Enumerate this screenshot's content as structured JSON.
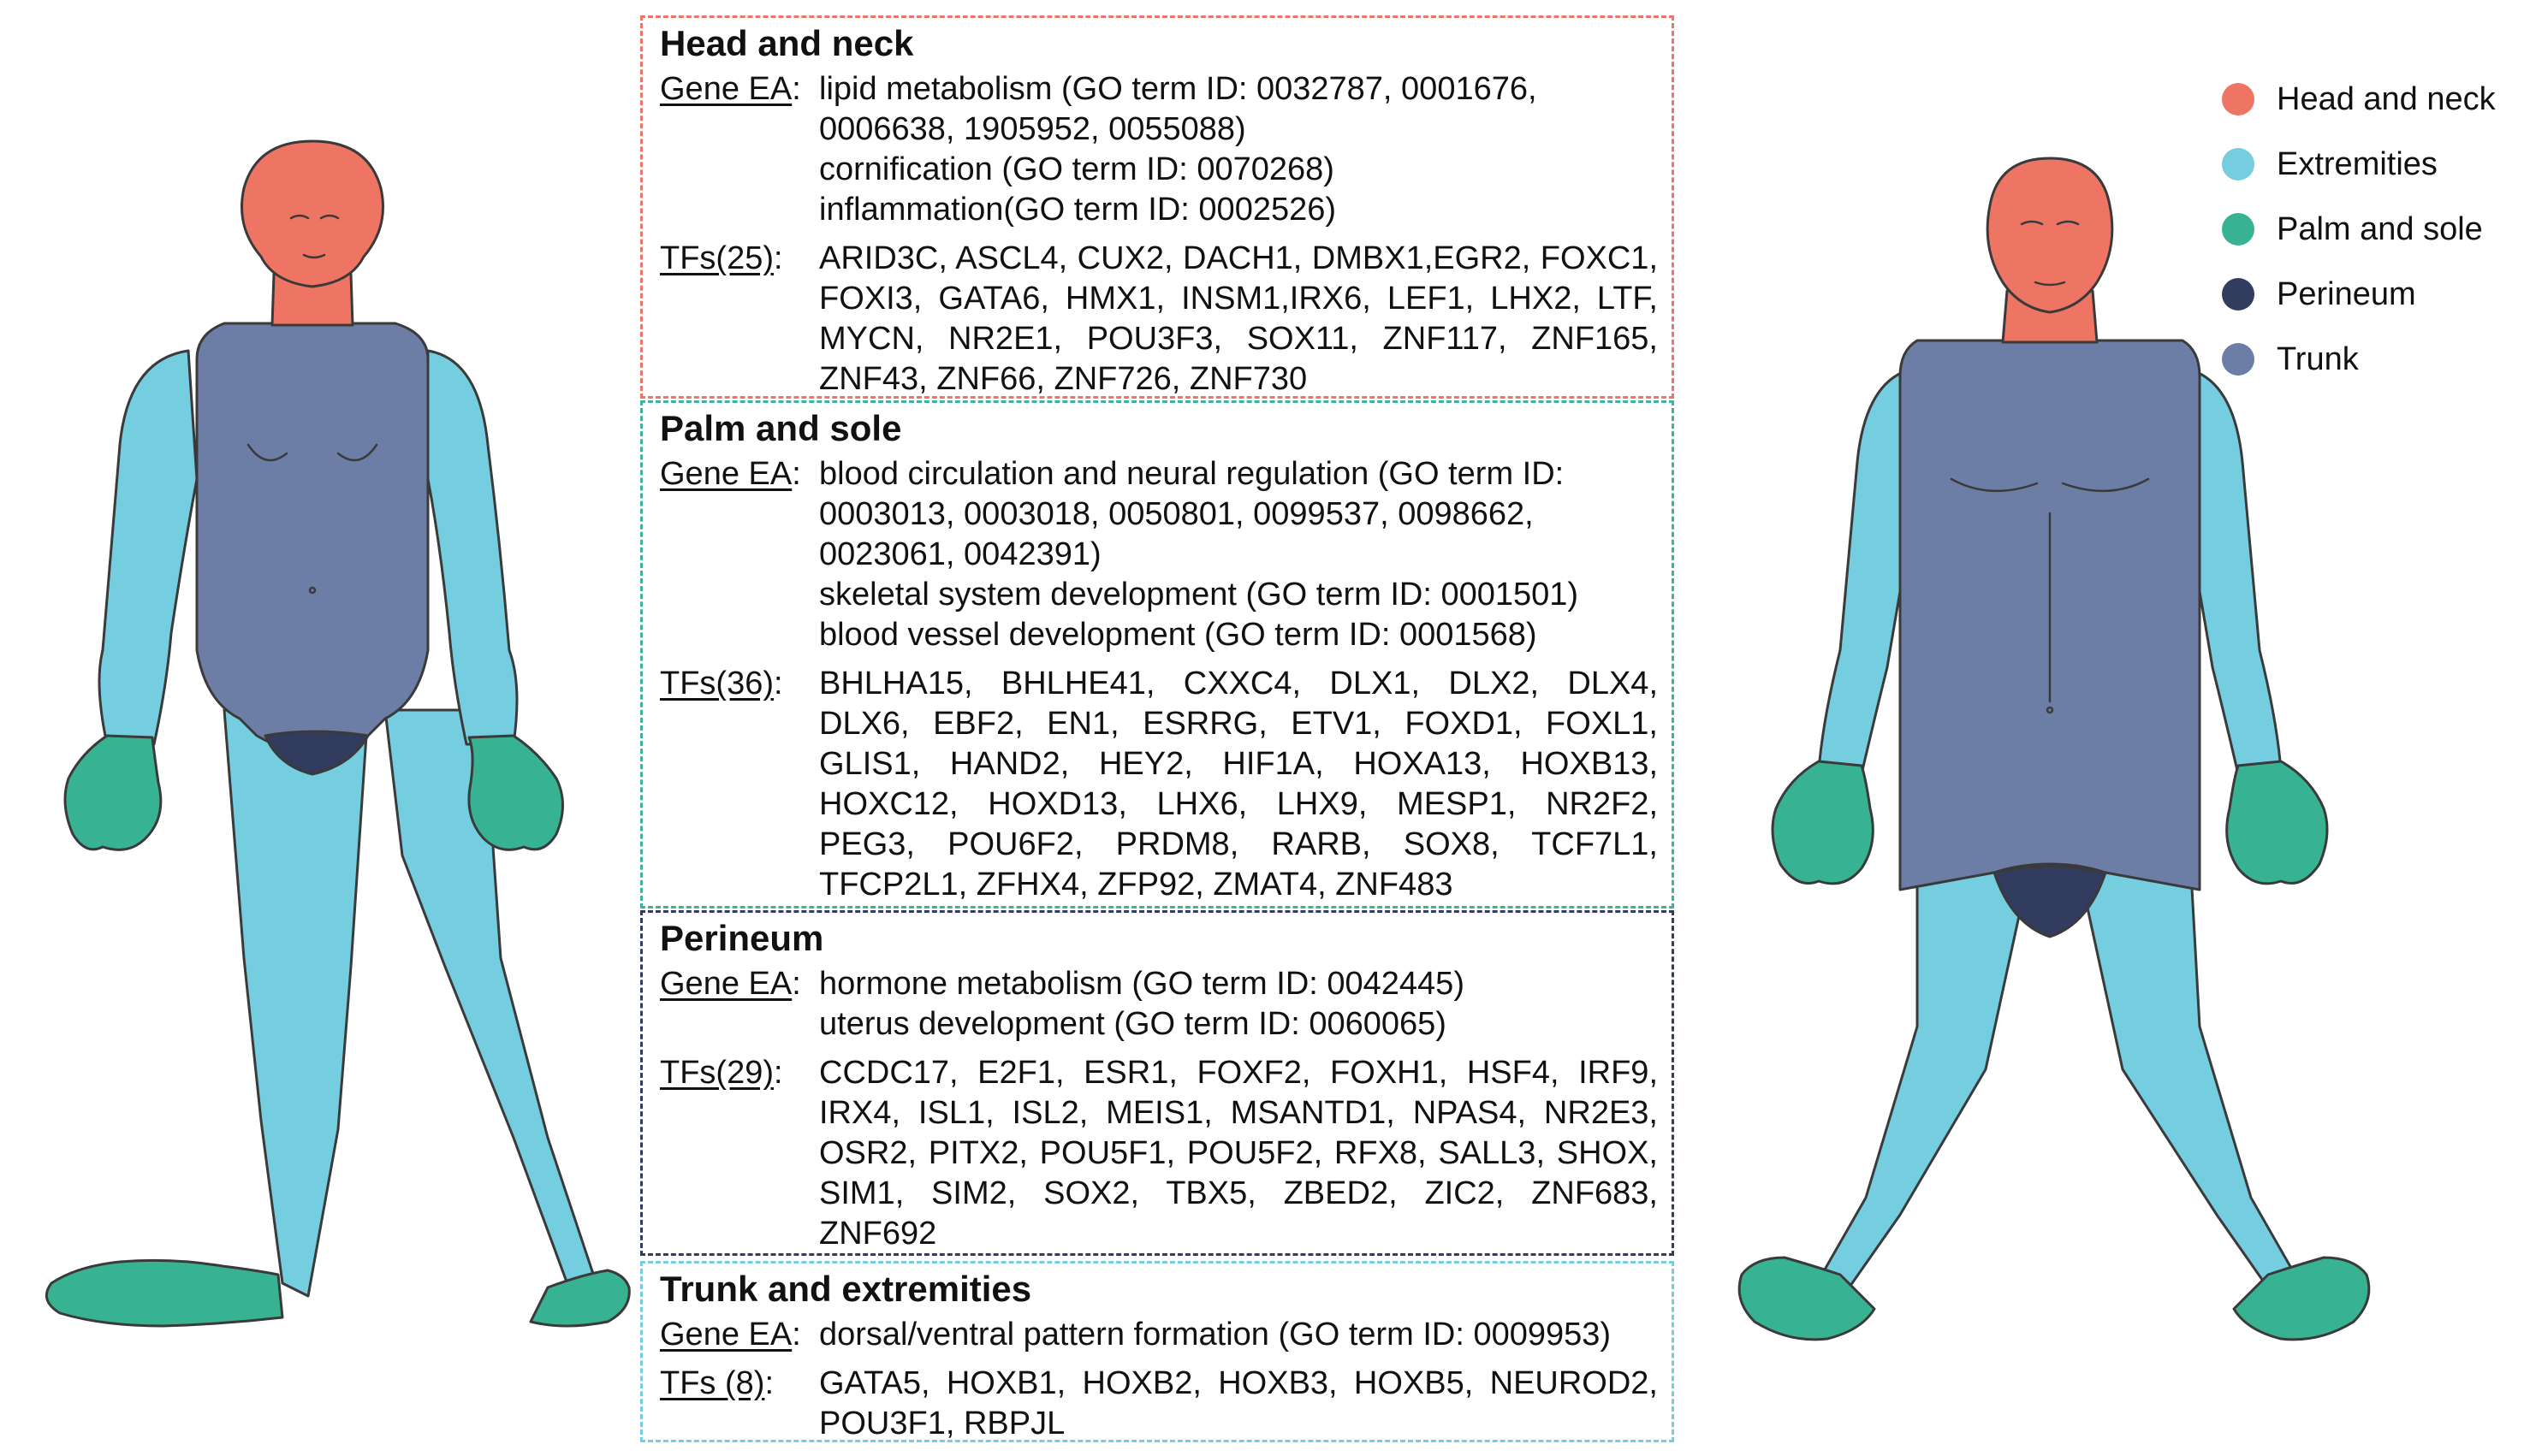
{
  "legend": {
    "items": [
      {
        "label": "Head and neck",
        "color": "#ee7563"
      },
      {
        "label": "Extremities",
        "color": "#75cde0"
      },
      {
        "label": "Palm and sole",
        "color": "#37b394"
      },
      {
        "label": "Perineum",
        "color": "#323c5e"
      },
      {
        "label": "Trunk",
        "color": "#6c7ea6"
      }
    ]
  },
  "panels": [
    {
      "id": "head-neck",
      "title": "Head and neck",
      "border_color": "#e8766a",
      "gene_ea_label": "Gene EA",
      "gene_ea_lines": [
        "lipid metabolism (GO term ID: 0032787, 0001676,",
        "0006638, 1905952, 0055088)",
        "cornification (GO term ID: 0070268)",
        "inflammation(GO term ID: 0002526)"
      ],
      "tfs_label": "TFs(25)",
      "tfs_text": "ARID3C, ASCL4, CUX2, DACH1, DMBX1,EGR2, FOXC1, FOXI3, GATA6, HMX1, INSM1,IRX6, LEF1, LHX2, LTF, MYCN, NR2E1, POU3F3, SOX11, ZNF117, ZNF165, ZNF43, ZNF66, ZNF726, ZNF730"
    },
    {
      "id": "palm-sole",
      "title": "Palm and sole",
      "border_color": "#3fb39a",
      "gene_ea_label": "Gene EA",
      "gene_ea_lines": [
        "blood circulation and neural regulation (GO term ID:",
        "0003013, 0003018, 0050801, 0099537, 0098662,",
        "0023061, 0042391)",
        "skeletal system development (GO term ID: 0001501)",
        "blood vessel development (GO term ID: 0001568)"
      ],
      "tfs_label": "TFs(36)",
      "tfs_text": "BHLHA15, BHLHE41, CXXC4, DLX1, DLX2, DLX4, DLX6, EBF2, EN1, ESRRG, ETV1, FOXD1, FOXL1, GLIS1, HAND2, HEY2, HIF1A, HOXA13, HOXB13, HOXC12, HOXD13, LHX6, LHX9, MESP1, NR2F2, PEG3, POU6F2, PRDM8, RARB, SOX8, TCF7L1, TFCP2L1, ZFHX4, ZFP92, ZMAT4, ZNF483"
    },
    {
      "id": "perineum",
      "title": "Perineum",
      "border_color": "#323c5e",
      "gene_ea_label": "Gene EA",
      "gene_ea_lines": [
        "hormone metabolism (GO term ID: 0042445)",
        "uterus development (GO term ID: 0060065)"
      ],
      "tfs_label": "TFs(29)",
      "tfs_text": "CCDC17, E2F1, ESR1, FOXF2, FOXH1, HSF4, IRF9, IRX4, ISL1, ISL2, MEIS1, MSANTD1, NPAS4, NR2E3, OSR2, PITX2, POU5F1, POU5F2, RFX8, SALL3, SHOX, SIM1, SIM2, SOX2, TBX5, ZBED2, ZIC2, ZNF683, ZNF692"
    },
    {
      "id": "trunk-extremities",
      "title": "Trunk and extremities",
      "border_color": "#75cde0",
      "gene_ea_label": "Gene EA",
      "gene_ea_lines": [
        "dorsal/ventral pattern formation (GO term ID: 0009953)"
      ],
      "tfs_label": "TFs (8)",
      "tfs_text": "GATA5, HOXB1, HOXB2, HOXB3, HOXB5, NEUROD2, POU3F1, RBPJL"
    }
  ],
  "region_colors": {
    "head": "#ee7563",
    "extremities": "#75cde0",
    "palm_sole": "#37b394",
    "perineum": "#323c5e",
    "trunk": "#6c7ea6",
    "outline": "#3a3a3a"
  }
}
